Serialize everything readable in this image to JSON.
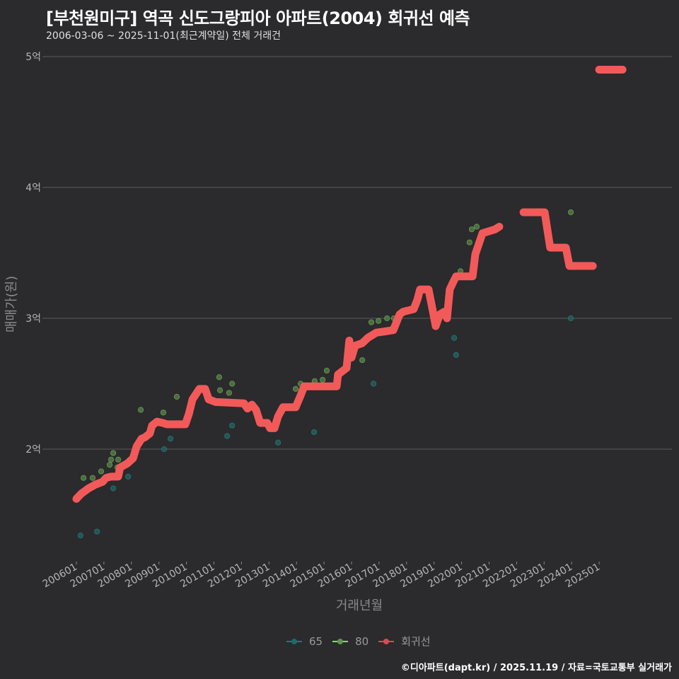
{
  "header": {
    "title": "[부천원미구] 역곡 신도그랑피아 아파트(2004) 회귀선 예측",
    "subtitle": "2006-03-06 ~ 2025-11-01(최근계약일) 전체 거래건"
  },
  "footer": {
    "credit": "©디아파트(dapt.kr) / 2025.11.19 / 자료=국토교통부 실거래가"
  },
  "colors": {
    "background": "#2b2a2c",
    "s65": "#1f7a7a",
    "s80": "#6fbf5a",
    "regression": "#f25a5a",
    "grid": "#5c5c5c"
  },
  "chart_data": {
    "type": "scatter",
    "title": "[부천원미구] 역곡 신도그랑피아 아파트(2004) 회귀선 예측",
    "xlabel": "거래년월",
    "ylabel": "매매가(원)",
    "xlim": [
      2005.0,
      2026.8
    ],
    "ylim": [
      1.1,
      5.1
    ],
    "y_unit": "억",
    "yticks": [
      {
        "value": 2,
        "label": "2억"
      },
      {
        "value": 3,
        "label": "3억"
      },
      {
        "value": 4,
        "label": "4억"
      },
      {
        "value": 5,
        "label": "5억"
      }
    ],
    "xticks": [
      {
        "value": 2006,
        "label": "200601"
      },
      {
        "value": 2007,
        "label": "200701"
      },
      {
        "value": 2008,
        "label": "200801"
      },
      {
        "value": 2009,
        "label": "200901"
      },
      {
        "value": 2010,
        "label": "201001"
      },
      {
        "value": 2011,
        "label": "201101"
      },
      {
        "value": 2012,
        "label": "201201"
      },
      {
        "value": 2013,
        "label": "201301"
      },
      {
        "value": 2014,
        "label": "201401"
      },
      {
        "value": 2015,
        "label": "201501"
      },
      {
        "value": 2016,
        "label": "201601"
      },
      {
        "value": 2017,
        "label": "201701"
      },
      {
        "value": 2018,
        "label": "201801"
      },
      {
        "value": 2019,
        "label": "201901"
      },
      {
        "value": 2020,
        "label": "202001"
      },
      {
        "value": 2021,
        "label": "202101"
      },
      {
        "value": 2022,
        "label": "202201"
      },
      {
        "value": 2023,
        "label": "202301"
      },
      {
        "value": 2024,
        "label": "202401"
      },
      {
        "value": 2025,
        "label": "202501"
      }
    ],
    "grid": "horizontal",
    "legend_position": "bottom",
    "legend": [
      {
        "key": "s65",
        "label": "65"
      },
      {
        "key": "s80",
        "label": "80"
      },
      {
        "key": "regression",
        "label": "회귀선"
      }
    ],
    "series": [
      {
        "name": "65",
        "type": "scatter",
        "points": [
          [
            2006.15,
            1.34
          ],
          [
            2006.75,
            1.37
          ],
          [
            2007.34,
            1.7
          ],
          [
            2007.88,
            1.79
          ],
          [
            2009.19,
            2.0
          ],
          [
            2009.42,
            2.08
          ],
          [
            2011.48,
            2.1
          ],
          [
            2011.66,
            2.18
          ],
          [
            2013.33,
            2.05
          ],
          [
            2014.64,
            2.13
          ],
          [
            2016.8,
            2.5
          ],
          [
            2019.73,
            2.85
          ],
          [
            2019.8,
            2.72
          ],
          [
            2023.97,
            3.0
          ]
        ]
      },
      {
        "name": "80",
        "type": "scatter",
        "points": [
          [
            2006.26,
            1.78
          ],
          [
            2006.59,
            1.78
          ],
          [
            2006.9,
            1.83
          ],
          [
            2007.21,
            1.88
          ],
          [
            2007.34,
            1.97
          ],
          [
            2007.26,
            1.92
          ],
          [
            2007.52,
            1.92
          ],
          [
            2007.49,
            1.86
          ],
          [
            2008.34,
            2.3
          ],
          [
            2009.16,
            2.28
          ],
          [
            2009.65,
            2.4
          ],
          [
            2011.19,
            2.55
          ],
          [
            2011.22,
            2.45
          ],
          [
            2011.55,
            2.43
          ],
          [
            2011.66,
            2.5
          ],
          [
            2013.97,
            2.46
          ],
          [
            2014.15,
            2.5
          ],
          [
            2014.66,
            2.52
          ],
          [
            2014.95,
            2.53
          ],
          [
            2015.1,
            2.6
          ],
          [
            2016.39,
            2.68
          ],
          [
            2016.72,
            2.97
          ],
          [
            2016.98,
            2.98
          ],
          [
            2017.29,
            3.0
          ],
          [
            2017.54,
            3.0
          ],
          [
            2019.96,
            3.36
          ],
          [
            2020.29,
            3.58
          ],
          [
            2020.37,
            3.68
          ],
          [
            2020.55,
            3.7
          ],
          [
            2023.97,
            3.81
          ]
        ]
      },
      {
        "name": "회귀선",
        "type": "line",
        "segments": [
          [
            [
              2006.0,
              1.62
            ],
            [
              2006.18,
              1.66
            ],
            [
              2006.44,
              1.7
            ],
            [
              2006.7,
              1.73
            ],
            [
              2006.95,
              1.75
            ],
            [
              2007.08,
              1.78
            ],
            [
              2007.26,
              1.79
            ],
            [
              2007.52,
              1.79
            ],
            [
              2007.59,
              1.86
            ],
            [
              2007.85,
              1.89
            ],
            [
              2008.06,
              1.93
            ],
            [
              2008.19,
              2.02
            ],
            [
              2008.37,
              2.08
            ],
            [
              2008.49,
              2.09
            ],
            [
              2008.67,
              2.12
            ],
            [
              2008.75,
              2.18
            ],
            [
              2008.93,
              2.21
            ],
            [
              2009.14,
              2.2
            ],
            [
              2009.29,
              2.19
            ],
            [
              2009.96,
              2.19
            ],
            [
              2010.09,
              2.27
            ],
            [
              2010.22,
              2.38
            ],
            [
              2010.47,
              2.46
            ],
            [
              2010.68,
              2.46
            ],
            [
              2010.81,
              2.38
            ],
            [
              2011.06,
              2.36
            ],
            [
              2012.09,
              2.35
            ],
            [
              2012.22,
              2.31
            ],
            [
              2012.38,
              2.34
            ],
            [
              2012.53,
              2.3
            ],
            [
              2012.68,
              2.2
            ],
            [
              2012.94,
              2.2
            ],
            [
              2013.04,
              2.16
            ],
            [
              2013.2,
              2.16
            ],
            [
              2013.33,
              2.25
            ],
            [
              2013.51,
              2.32
            ],
            [
              2013.97,
              2.32
            ],
            [
              2014.15,
              2.41
            ],
            [
              2014.28,
              2.48
            ],
            [
              2015.46,
              2.48
            ],
            [
              2015.51,
              2.57
            ],
            [
              2015.82,
              2.62
            ],
            [
              2015.92,
              2.83
            ],
            [
              2016.0,
              2.7
            ],
            [
              2016.13,
              2.79
            ],
            [
              2016.39,
              2.81
            ],
            [
              2016.59,
              2.85
            ],
            [
              2016.9,
              2.89
            ],
            [
              2017.23,
              2.9
            ],
            [
              2017.52,
              2.91
            ],
            [
              2017.75,
              3.03
            ],
            [
              2017.88,
              3.05
            ],
            [
              2018.26,
              3.07
            ],
            [
              2018.39,
              3.14
            ],
            [
              2018.49,
              3.22
            ],
            [
              2018.8,
              3.22
            ],
            [
              2018.96,
              3.05
            ],
            [
              2019.06,
              2.94
            ],
            [
              2019.21,
              3.03
            ],
            [
              2019.37,
              3.05
            ],
            [
              2019.47,
              3.0
            ],
            [
              2019.57,
              3.22
            ],
            [
              2019.68,
              3.27
            ],
            [
              2019.8,
              3.32
            ],
            [
              2020.4,
              3.32
            ],
            [
              2020.5,
              3.49
            ],
            [
              2020.63,
              3.57
            ],
            [
              2020.76,
              3.65
            ],
            [
              2021.22,
              3.68
            ],
            [
              2021.37,
              3.7
            ]
          ],
          [
            [
              2022.25,
              3.81
            ],
            [
              2023.02,
              3.81
            ],
            [
              2023.22,
              3.54
            ],
            [
              2023.79,
              3.54
            ],
            [
              2023.92,
              3.4
            ],
            [
              2024.77,
              3.4
            ]
          ],
          [
            [
              2025.0,
              4.9
            ],
            [
              2025.85,
              4.9
            ]
          ]
        ]
      }
    ]
  }
}
